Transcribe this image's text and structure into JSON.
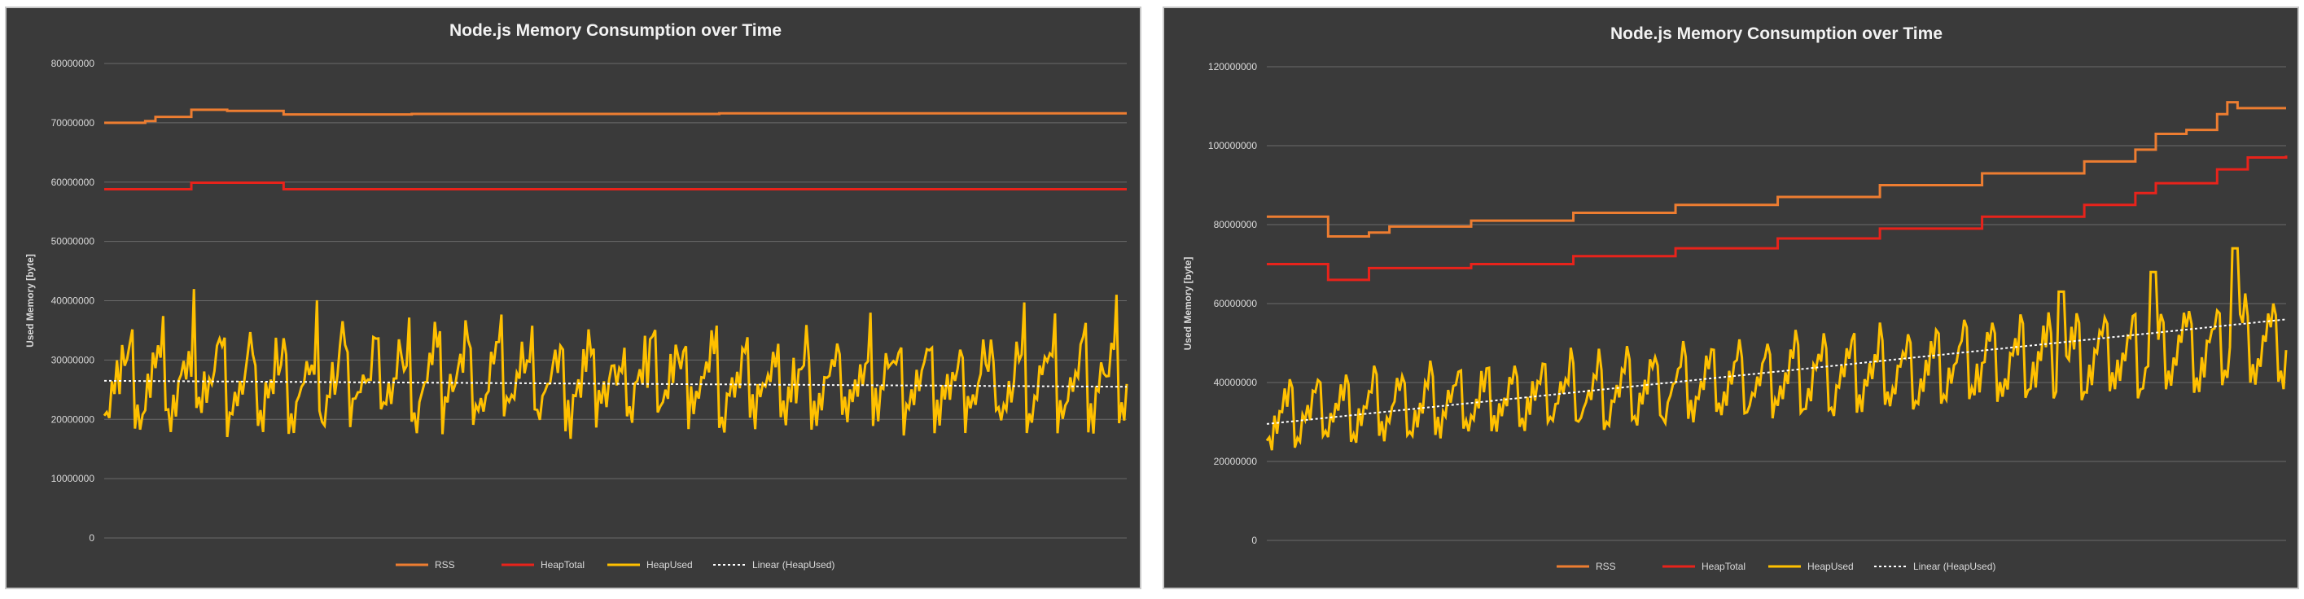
{
  "chart_data": [
    {
      "type": "line",
      "title": "Node.js Memory Consumption over Time",
      "ylabel": "Used Memory [byte]",
      "xlabel": "",
      "ylim": [
        0,
        80000000
      ],
      "yticks": [
        0,
        10000000,
        20000000,
        30000000,
        40000000,
        50000000,
        60000000,
        70000000,
        80000000
      ],
      "ytick_labels": [
        "0",
        "10000000",
        "20000000",
        "30000000",
        "40000000",
        "50000000",
        "60000000",
        "70000000",
        "80000000"
      ],
      "x_count": 400,
      "grid": true,
      "legend_position": "bottom",
      "series": [
        {
          "name": "RSS",
          "color": "#ed7d31",
          "style": "step",
          "steps": [
            [
              0,
              70000000
            ],
            [
              0.04,
              70300000
            ],
            [
              0.05,
              71000000
            ],
            [
              0.085,
              72200000
            ],
            [
              0.12,
              72000000
            ],
            [
              0.175,
              71400000
            ],
            [
              0.3,
              71500000
            ],
            [
              0.6,
              71600000
            ],
            [
              1.0,
              71600000
            ]
          ]
        },
        {
          "name": "HeapTotal",
          "color": "#e8231b",
          "style": "step",
          "steps": [
            [
              0,
              58800000
            ],
            [
              0.085,
              59900000
            ],
            [
              0.175,
              58800000
            ],
            [
              1.0,
              58800000
            ]
          ]
        },
        {
          "name": "HeapUsed",
          "color": "#ffc000",
          "style": "sawtooth",
          "cycle_points": 12,
          "base_range": [
            17000000,
            22000000
          ],
          "peak_range": [
            29000000,
            38000000
          ],
          "start": 15500000
        },
        {
          "name": "Linear  (HeapUsed)",
          "color": "#ffffff",
          "style": "trend",
          "from": 26500000,
          "to": 25500000
        }
      ]
    },
    {
      "type": "line",
      "title": "Node.js Memory Consumption over Time",
      "ylabel": "Used Memory [byte]",
      "xlabel": "",
      "ylim": [
        0,
        120000000
      ],
      "yticks": [
        0,
        20000000,
        40000000,
        60000000,
        80000000,
        100000000,
        120000000
      ],
      "ytick_labels": [
        "0",
        "20000000",
        "40000000",
        "60000000",
        "80000000",
        "100000000",
        "120000000"
      ],
      "x_count": 400,
      "grid": true,
      "legend_position": "bottom",
      "series": [
        {
          "name": "RSS",
          "color": "#ed7d31",
          "style": "step",
          "steps": [
            [
              0,
              82000000
            ],
            [
              0.06,
              77000000
            ],
            [
              0.1,
              78000000
            ],
            [
              0.12,
              79500000
            ],
            [
              0.2,
              81000000
            ],
            [
              0.3,
              83000000
            ],
            [
              0.4,
              85000000
            ],
            [
              0.5,
              87000000
            ],
            [
              0.6,
              90000000
            ],
            [
              0.7,
              93000000
            ],
            [
              0.8,
              96000000
            ],
            [
              0.85,
              99000000
            ],
            [
              0.87,
              103000000
            ],
            [
              0.9,
              104000000
            ],
            [
              0.93,
              108000000
            ],
            [
              0.94,
              111000000
            ],
            [
              0.95,
              109500000
            ],
            [
              1.0,
              109500000
            ]
          ]
        },
        {
          "name": "HeapTotal",
          "color": "#e8231b",
          "style": "step",
          "steps": [
            [
              0,
              70000000
            ],
            [
              0.06,
              66000000
            ],
            [
              0.1,
              69000000
            ],
            [
              0.2,
              70000000
            ],
            [
              0.3,
              72000000
            ],
            [
              0.4,
              74000000
            ],
            [
              0.5,
              76500000
            ],
            [
              0.6,
              79000000
            ],
            [
              0.7,
              82000000
            ],
            [
              0.8,
              85000000
            ],
            [
              0.85,
              88000000
            ],
            [
              0.87,
              90500000
            ],
            [
              0.93,
              94000000
            ],
            [
              0.96,
              97000000
            ],
            [
              1.0,
              97500000
            ]
          ]
        },
        {
          "name": "HeapUsed",
          "color": "#ffc000",
          "style": "sawtooth-growing",
          "cycle_points": 11,
          "start_range": [
            23000000,
            40000000
          ],
          "end_range": [
            38000000,
            62000000
          ],
          "spikes": [
            [
              0.78,
              63000000
            ],
            [
              0.87,
              68000000
            ],
            [
              0.95,
              74000000
            ]
          ],
          "start": 22000000
        },
        {
          "name": "Linear  (HeapUsed)",
          "color": "#ffffff",
          "style": "trend",
          "from": 29500000,
          "to": 56000000
        }
      ]
    }
  ]
}
